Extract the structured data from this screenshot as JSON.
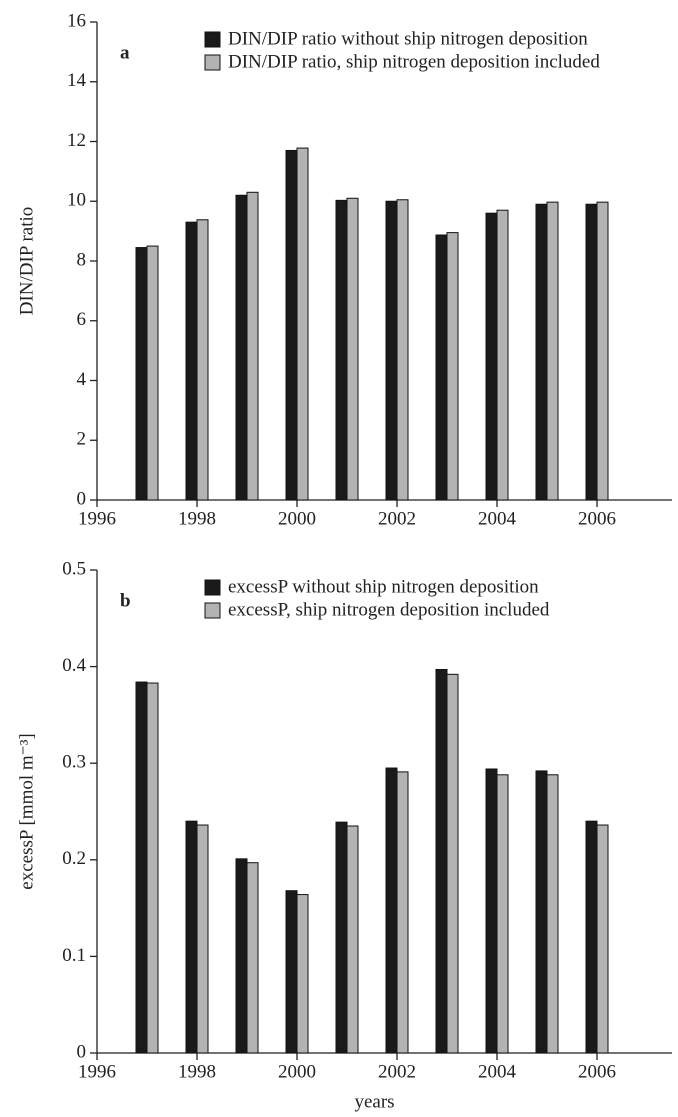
{
  "chart_data": [
    {
      "type": "bar",
      "panel_label": "a",
      "ylabel": "DIN/DIP ratio",
      "x": [
        1997,
        1998,
        1999,
        2000,
        2001,
        2002,
        2003,
        2004,
        2005,
        2006
      ],
      "series": [
        {
          "name": "DIN/DIP ratio without ship nitrogen deposition",
          "color": "#1a1a1a",
          "values": [
            8.45,
            9.3,
            10.2,
            11.7,
            10.03,
            10.0,
            8.87,
            9.6,
            9.9,
            9.9
          ]
        },
        {
          "name": "DIN/DIP ratio, ship nitrogen deposition included",
          "color": "#b3b3b3",
          "values": [
            8.5,
            9.38,
            10.3,
            11.78,
            10.1,
            10.05,
            8.95,
            9.7,
            9.97,
            9.97
          ]
        }
      ],
      "xlim": [
        1996,
        2007.5
      ],
      "xticks": [
        1996,
        1998,
        2000,
        2002,
        2004,
        2006
      ],
      "ylim": [
        0,
        16
      ],
      "yticks": [
        0,
        2,
        4,
        6,
        8,
        10,
        12,
        14,
        16
      ],
      "grid": false
    },
    {
      "type": "bar",
      "panel_label": "b",
      "ylabel": "excessP [mmol m⁻³]",
      "xlabel": "years",
      "x": [
        1997,
        1998,
        1999,
        2000,
        2001,
        2002,
        2003,
        2004,
        2005,
        2006
      ],
      "series": [
        {
          "name": "excessP without ship nitrogen deposition",
          "color": "#1a1a1a",
          "values": [
            0.384,
            0.24,
            0.201,
            0.168,
            0.239,
            0.295,
            0.397,
            0.294,
            0.292,
            0.24
          ]
        },
        {
          "name": "excessP, ship nitrogen deposition included",
          "color": "#b3b3b3",
          "values": [
            0.383,
            0.236,
            0.197,
            0.164,
            0.235,
            0.291,
            0.392,
            0.288,
            0.288,
            0.236
          ]
        }
      ],
      "xlim": [
        1996,
        2007.5
      ],
      "xticks": [
        1996,
        1998,
        2000,
        2002,
        2004,
        2006
      ],
      "ylim": [
        0,
        0.5
      ],
      "yticks": [
        0,
        0.1,
        0.2,
        0.3,
        0.4,
        0.5
      ],
      "grid": false
    }
  ]
}
